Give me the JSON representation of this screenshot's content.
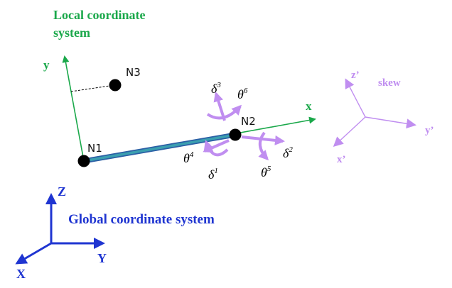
{
  "local_system": {
    "title_line1": "Local coordinate",
    "title_line2": "system",
    "axis_x": "x",
    "axis_y": "y",
    "color": "#1aa84a"
  },
  "global_system": {
    "title": "Global coordinate system",
    "axis_x": "X",
    "axis_y": "Y",
    "axis_z": "Z",
    "color": "#1f35d1"
  },
  "skew_system": {
    "title": "skew",
    "axis_x": "x’",
    "axis_y": "y’",
    "axis_z": "z’",
    "color": "#c08ef0"
  },
  "nodes": {
    "n1": "N1",
    "n2": "N2",
    "n3": "N3"
  },
  "dofs": {
    "delta": "δ",
    "theta": "θ",
    "d1": "1",
    "d2": "2",
    "d3": "3",
    "t4": "4",
    "t5": "5",
    "t6": "6",
    "color": "#c08ef0"
  },
  "element": {
    "color_core": "#3b9fb0",
    "color_edge": "#2b5fa5"
  }
}
